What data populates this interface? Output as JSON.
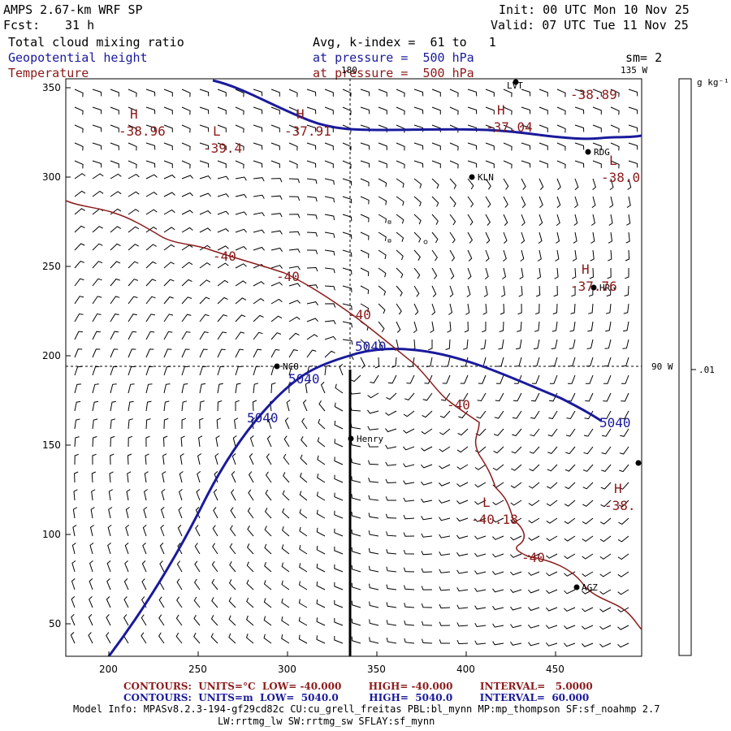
{
  "header": {
    "model": "AMPS 2.67-km WRF SP",
    "fcst_label": "Fcst:",
    "fcst_value": "31 h",
    "init": "Init: 00 UTC Mon 10 Nov 25",
    "valid": "Valid: 07 UTC Tue 11 Nov 25",
    "field1": "Total cloud mixing ratio",
    "field2": "Geopotential height",
    "field3": "Temperature",
    "avg": "Avg, k-index =  61 to   1",
    "pressure1": "at pressure =  500 hPa",
    "pressure2": "at pressure =  500 hPa",
    "sm": "sm= 2"
  },
  "axes": {
    "x_ticks": [
      "200",
      "250",
      "300",
      "350",
      "400",
      "450"
    ],
    "y_ticks": [
      "350",
      "300",
      "250",
      "200",
      "150",
      "100",
      "50"
    ],
    "lon_180": "180",
    "lon_135": "135 W",
    "lon_90": "90 W"
  },
  "colorbar": {
    "unit": "g kg⁻¹",
    "tick": ".01"
  },
  "map": {
    "stations": [
      {
        "name": "LVT"
      },
      {
        "name": "RDG"
      },
      {
        "name": "KLN"
      },
      {
        "name": "HRG"
      },
      {
        "name": "NCO"
      },
      {
        "name": "Henry"
      },
      {
        "name": "AGZ"
      }
    ],
    "highs_lows": [
      {
        "letter": "H",
        "value": "-38.96"
      },
      {
        "letter": "L",
        "value": "-39.4"
      },
      {
        "letter": "H",
        "value": "-37.91"
      },
      {
        "letter": "H",
        "value": "-37.04"
      },
      {
        "letter": "L",
        "value": "-38.89"
      },
      {
        "letter": "L",
        "value": "-38.0"
      },
      {
        "letter": "H",
        "value": "-37.76"
      },
      {
        "letter": "L",
        "value": "-40.18"
      },
      {
        "letter": "H",
        "value": "-38."
      }
    ],
    "temp_labels": [
      "-40",
      "-40",
      "-40",
      "-40",
      "-40"
    ],
    "height_labels": [
      "5040",
      "5040",
      "5040",
      "5040"
    ],
    "colors": {
      "height": "#1a1a9c",
      "temp": "#8b1a1a"
    }
  },
  "footer": {
    "temp_contours": "CONTOURS:  UNITS=°C  LOW= -40.000        HIGH= -40.000        INTERVAL=   5.0000",
    "height_contours": "CONTOURS:  UNITS=m  LOW=  5040.0         HIGH=  5040.0        INTERVAL=  60.000",
    "model_info": "Model Info: MPASv8.2.3-194-gf29cd82c CU:cu_grell_freitas PBL:bl_mynn MP:mp_thompson SF:sf_noahmp 2.7",
    "model_info2": "LW:rrtmg_lw SW:rrtmg_sw SFLAY:sf_mynn"
  }
}
